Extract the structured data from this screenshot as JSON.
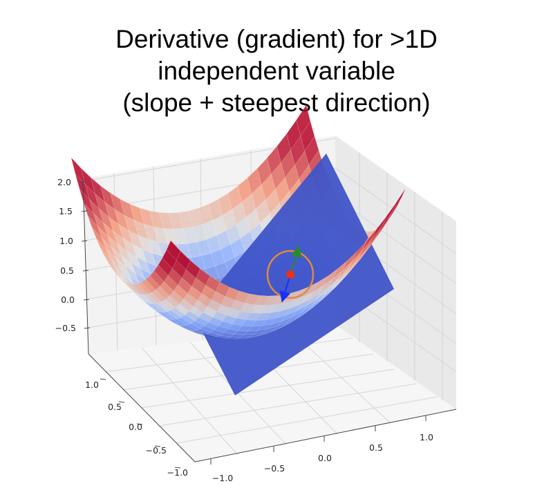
{
  "title": {
    "lines": [
      "Derivative (gradient) for >1D",
      "independent variable",
      "(slope + steepest direction)"
    ]
  },
  "colors": {
    "plane": "#3f54c8",
    "gradient_arrow": "#2a8a2a",
    "descent_arrow": "#1530ff",
    "point": "#e8311f",
    "level_curve": "#e08a3c",
    "pane_back": "#f2f2f2",
    "pane_side": "#e9e9e9",
    "grid": "#cfcfcf"
  },
  "axes": {
    "z_ticks": [
      "2.0",
      "1.5",
      "1.0",
      "0.5",
      "0.0",
      "−0.5"
    ],
    "y_ticks": [
      "1.0",
      "0.5",
      "0.0",
      "−0.5",
      "−1.0"
    ],
    "x_ticks": [
      "−1.0",
      "−0.5",
      "0.0",
      "0.5",
      "1.0"
    ]
  },
  "surface": {
    "function": "z = x^2 + y^2",
    "colormap": "coolwarm",
    "range": [
      -1.0,
      1.0
    ]
  }
}
